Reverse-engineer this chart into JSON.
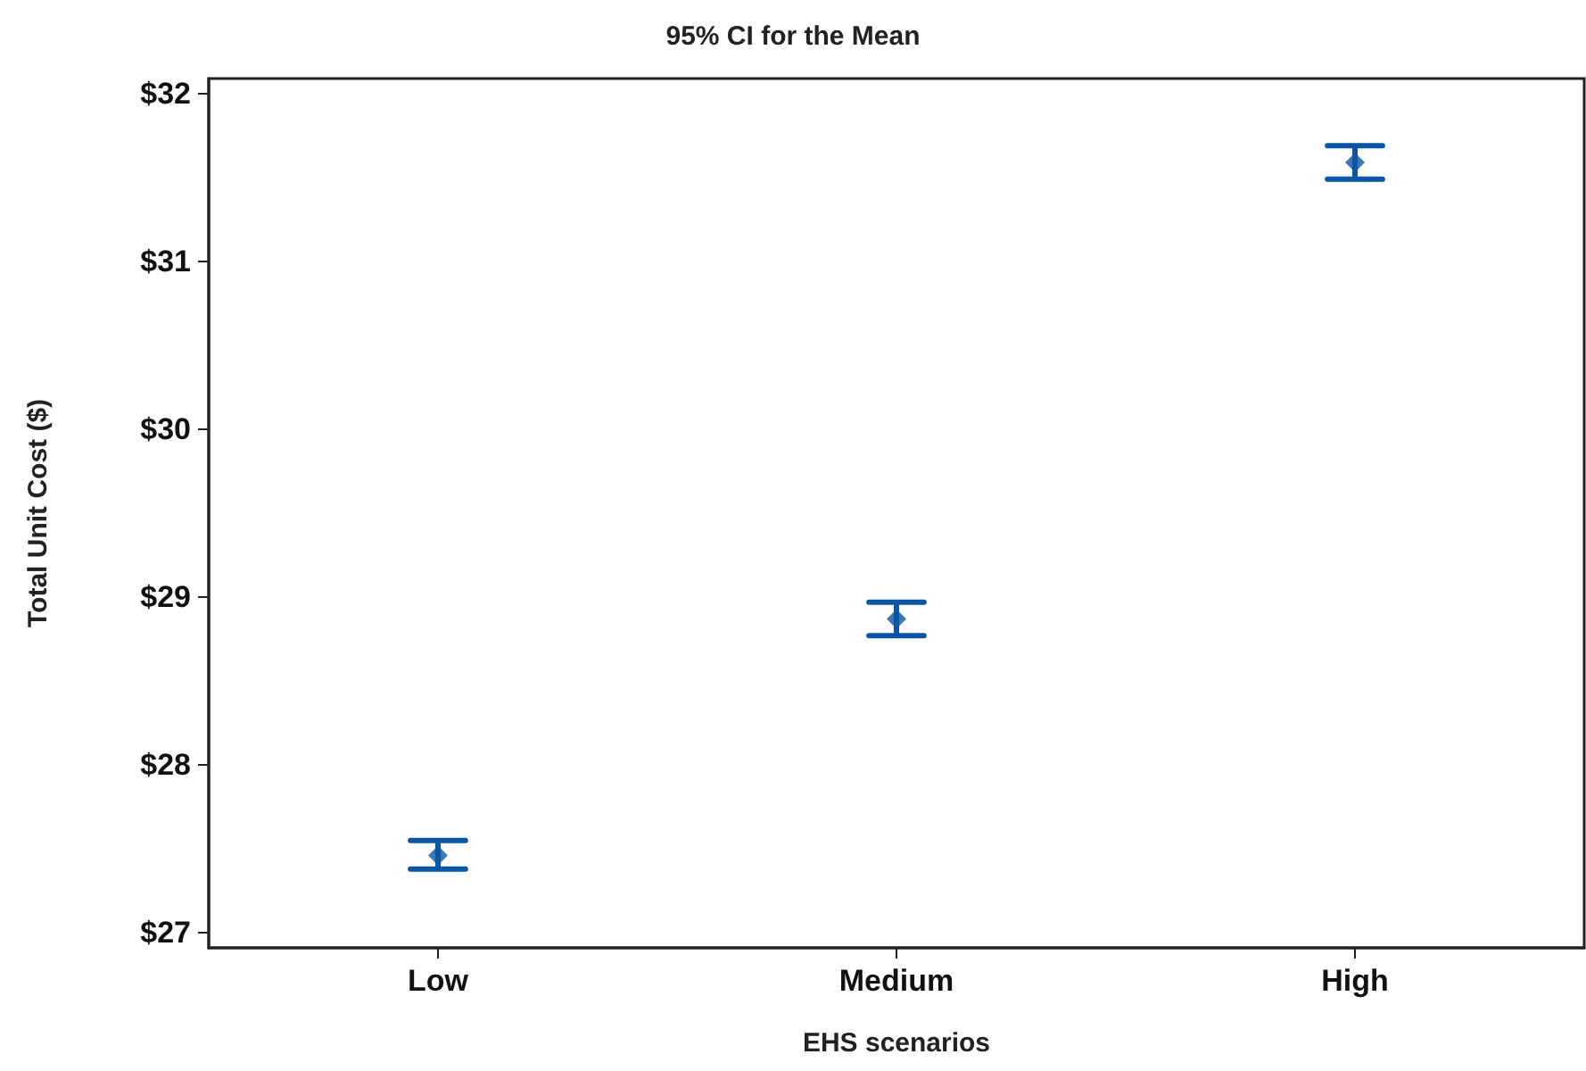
{
  "chart_data": {
    "type": "scatter",
    "title": "95% CI for the Mean",
    "xlabel": "EHS scenarios",
    "ylabel": "Total Unit Cost ($)",
    "categories": [
      "Low",
      "Medium",
      "High"
    ],
    "color": "#0b56a4",
    "values": [
      27.46,
      28.87,
      31.59
    ],
    "errors": [
      [
        27.38,
        27.55
      ],
      [
        28.77,
        28.97
      ],
      [
        31.49,
        31.69
      ]
    ],
    "ylim": [
      26.91,
      32.09
    ],
    "yticks": [
      {
        "value": 27,
        "label": "$27"
      },
      {
        "value": 28,
        "label": "$28"
      },
      {
        "value": 29,
        "label": "$29"
      },
      {
        "value": 30,
        "label": "$30"
      },
      {
        "value": 31,
        "label": "$31"
      },
      {
        "value": 32,
        "label": "$32"
      }
    ],
    "grid": false,
    "marker": "diamond"
  }
}
